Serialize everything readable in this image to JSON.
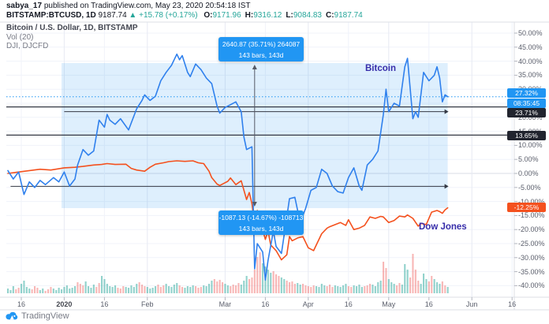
{
  "header": {
    "username": "sabya_17",
    "published": " published on TradingView.com, May 23, 2020 20:54:18 IST",
    "symbol": "BITSTAMP:BTCUSD, 1D",
    "last": "9187.74",
    "change": "▲ +15.78 (+0.17%)",
    "ohlc": [
      {
        "label": "O:",
        "value": "9171.96"
      },
      {
        "label": "H:",
        "value": "9316.12"
      },
      {
        "label": "L:",
        "value": "9084.83"
      },
      {
        "label": "C:",
        "value": "9187.74"
      }
    ]
  },
  "legend": {
    "title": "Bitcoin / U.S. Dollar, 1D, BITSTAMP",
    "vol": "Vol (20)",
    "compare": "DJI, DJCFD"
  },
  "series_labels": {
    "bitcoin": "Bitcoin",
    "dowjones": "Dow Jones"
  },
  "tooltips": {
    "top": {
      "line1": "2640.87 (35.71%) 264087",
      "line2": "143 bars, 143d"
    },
    "bottom": {
      "line1": "-1087.13 (-14.67%) -108713",
      "line2": "143 bars, 143d"
    }
  },
  "axis": {
    "y_labels": [
      "50.00%",
      "45.00%",
      "40.00%",
      "35.00%",
      "30.00%",
      "25.00%",
      "20.00%",
      "15.00%",
      "10.00%",
      "5.00%",
      "0.00%",
      "-5.00%",
      "-10.00%",
      "-15.00%",
      "-20.00%",
      "-25.00%",
      "-30.00%",
      "-35.00%",
      "-40.00%"
    ],
    "x_ticks": [
      {
        "label": "16",
        "day": 5,
        "bold": false
      },
      {
        "label": "2020",
        "day": 21,
        "bold": true
      },
      {
        "label": "16",
        "day": 36,
        "bold": false
      },
      {
        "label": "Feb",
        "day": 52,
        "bold": false
      },
      {
        "label": "Mar",
        "day": 81,
        "bold": false
      },
      {
        "label": "16",
        "day": 96,
        "bold": false
      },
      {
        "label": "Apr",
        "day": 112,
        "bold": false
      },
      {
        "label": "16",
        "day": 127,
        "bold": false
      },
      {
        "label": "May",
        "day": 142,
        "bold": false
      },
      {
        "label": "16",
        "day": 157,
        "bold": false
      },
      {
        "label": "Jun",
        "day": 173,
        "bold": false
      },
      {
        "label": "16",
        "day": 188,
        "bold": false
      }
    ],
    "badges": {
      "btc_current": "27.32%",
      "countdown": "08:35:45",
      "level1": "23.71%",
      "level2": "13.65%",
      "dji_current": "-12.25%"
    }
  },
  "footer": {
    "brand": "TradingView"
  },
  "colors": {
    "btc": "#2f80ed",
    "dji": "#f4511e",
    "shade": "rgba(33,150,243,0.15)",
    "tooltip": "#2196f3",
    "badge_black": "#21242e",
    "badge_red": "#f4511e",
    "purple": "#372daa",
    "vol_up": "rgba(38,166,154,0.50)",
    "vol_down": "rgba(239,83,80,0.42)",
    "grid": "#f0f3fa",
    "grid_month": "#e7eaf3",
    "zero_line": "#dadde6",
    "frame": "#dcdfe6",
    "dark_line": "#343843",
    "arrow_gray": "#555a66",
    "tick": "#b2b5be"
  },
  "chart_data": {
    "type": "line",
    "title": "Bitcoin / U.S. Dollar (BITSTAMP, 1D) vs Dow Jones (DJI, DJCFD) — percent change",
    "x_unit": "days since 2019-12-11",
    "x_range_days": [
      0,
      190
    ],
    "ylim": [
      -40,
      50
    ],
    "y_unit": "percent",
    "grid": true,
    "legend_position": "on-chart-labels",
    "series": [
      {
        "name": "Bitcoin (BTCUSD)",
        "color": "#2f80ed",
        "points": [
          [
            0,
            1
          ],
          [
            2,
            -2
          ],
          [
            4,
            0.5
          ],
          [
            6,
            -7.5
          ],
          [
            8,
            -3
          ],
          [
            10,
            -5
          ],
          [
            12,
            -2.5
          ],
          [
            14,
            -4
          ],
          [
            17,
            -1.5
          ],
          [
            19,
            -3
          ],
          [
            21,
            0.5
          ],
          [
            23,
            -4.5
          ],
          [
            25,
            -2
          ],
          [
            26,
            3
          ],
          [
            28,
            8.5
          ],
          [
            30,
            6.5
          ],
          [
            32,
            8
          ],
          [
            34,
            19
          ],
          [
            36,
            16.5
          ],
          [
            37,
            21
          ],
          [
            38,
            19
          ],
          [
            40,
            17.5
          ],
          [
            42,
            19.5
          ],
          [
            45,
            15.5
          ],
          [
            48,
            23
          ],
          [
            50,
            26
          ],
          [
            51,
            28
          ],
          [
            53,
            26
          ],
          [
            55,
            27.5
          ],
          [
            57,
            33
          ],
          [
            59,
            36
          ],
          [
            61,
            38.5
          ],
          [
            63,
            42.5
          ],
          [
            64,
            40.5
          ],
          [
            65,
            42
          ],
          [
            67,
            36
          ],
          [
            68,
            34.5
          ],
          [
            70,
            39
          ],
          [
            72,
            37
          ],
          [
            74,
            34
          ],
          [
            76,
            32
          ],
          [
            78,
            24
          ],
          [
            79,
            21.5
          ],
          [
            81,
            23.5
          ],
          [
            83,
            24.5
          ],
          [
            85,
            25.5
          ],
          [
            87,
            22
          ],
          [
            88,
            13
          ],
          [
            89,
            8.5
          ],
          [
            91,
            9.5
          ],
          [
            92,
            -34
          ],
          [
            93,
            -25
          ],
          [
            95,
            -28
          ],
          [
            96,
            -38
          ],
          [
            97,
            -31
          ],
          [
            99,
            -20.5
          ],
          [
            100,
            -26
          ],
          [
            102,
            -28.5
          ],
          [
            105,
            -9
          ],
          [
            107,
            -8.5
          ],
          [
            109,
            -17.5
          ],
          [
            111,
            -12.5
          ],
          [
            113,
            -6
          ],
          [
            115,
            -5
          ],
          [
            117,
            1.5
          ],
          [
            119,
            0
          ],
          [
            121,
            -4.5
          ],
          [
            123,
            -6.5
          ],
          [
            125,
            -7
          ],
          [
            127,
            -1.5
          ],
          [
            129,
            2
          ],
          [
            131,
            -4.5
          ],
          [
            132,
            -6
          ],
          [
            134,
            3
          ],
          [
            136,
            5
          ],
          [
            138,
            8
          ],
          [
            140,
            21
          ],
          [
            141,
            30
          ],
          [
            142,
            22
          ],
          [
            144,
            25
          ],
          [
            146,
            24
          ],
          [
            148,
            38
          ],
          [
            149,
            41
          ],
          [
            151,
            19.5
          ],
          [
            152,
            22
          ],
          [
            153,
            20
          ],
          [
            155,
            36
          ],
          [
            157,
            33
          ],
          [
            159,
            35
          ],
          [
            160,
            38
          ],
          [
            161,
            34
          ],
          [
            162,
            25.5
          ],
          [
            163,
            28
          ],
          [
            164,
            27.32
          ]
        ]
      },
      {
        "name": "Dow Jones (DJI)",
        "color": "#f4511e",
        "points": [
          [
            0,
            0
          ],
          [
            4,
            0.5
          ],
          [
            8,
            1
          ],
          [
            12,
            1.5
          ],
          [
            16,
            1.2
          ],
          [
            21,
            2
          ],
          [
            25,
            2.2
          ],
          [
            28,
            2.5
          ],
          [
            32,
            3
          ],
          [
            35,
            3.2
          ],
          [
            37,
            3.5
          ],
          [
            40,
            3.2
          ],
          [
            44,
            3.3
          ],
          [
            46,
            1.8
          ],
          [
            48,
            1.2
          ],
          [
            51,
            0.8
          ],
          [
            53,
            2.2
          ],
          [
            55,
            3.3
          ],
          [
            58,
            3.8
          ],
          [
            60,
            4.2
          ],
          [
            63,
            4.5
          ],
          [
            66,
            4.3
          ],
          [
            69,
            4.5
          ],
          [
            71,
            3.8
          ],
          [
            73,
            3.5
          ],
          [
            75,
            0.8
          ],
          [
            76,
            -1.5
          ],
          [
            78,
            -3.8
          ],
          [
            79,
            -4.3
          ],
          [
            82,
            -2.8
          ],
          [
            83,
            -1.6
          ],
          [
            85,
            -4
          ],
          [
            87,
            -2.6
          ],
          [
            89,
            -9.3
          ],
          [
            90,
            -6.8
          ],
          [
            91,
            -10.8
          ],
          [
            92,
            -18.5
          ],
          [
            93,
            -13.2
          ],
          [
            96,
            -23.5
          ],
          [
            97,
            -20.5
          ],
          [
            98,
            -25.5
          ],
          [
            100,
            -27.5
          ],
          [
            102,
            -30.8
          ],
          [
            104,
            -29
          ],
          [
            105,
            -22.5
          ],
          [
            106,
            -24
          ],
          [
            108,
            -23
          ],
          [
            110,
            -22.5
          ],
          [
            112,
            -26.5
          ],
          [
            114,
            -27.5
          ],
          [
            117,
            -21.5
          ],
          [
            119,
            -19.5
          ],
          [
            120,
            -19
          ],
          [
            124,
            -17.5
          ],
          [
            126,
            -18.5
          ],
          [
            127,
            -16.5
          ],
          [
            129,
            -20
          ],
          [
            131,
            -19.5
          ],
          [
            133,
            -18.5
          ],
          [
            135,
            -15.5
          ],
          [
            137,
            -16
          ],
          [
            139,
            -15.3
          ],
          [
            140,
            -15.5
          ],
          [
            142,
            -17.5
          ],
          [
            144,
            -16.8
          ],
          [
            146,
            -15.2
          ],
          [
            148,
            -15.5
          ],
          [
            149,
            -14.8
          ],
          [
            151,
            -16
          ],
          [
            153,
            -18.8
          ],
          [
            154,
            -17.8
          ],
          [
            156,
            -18.2
          ],
          [
            158,
            -13.8
          ],
          [
            160,
            -13.2
          ],
          [
            161,
            -13.6
          ],
          [
            162,
            -14.2
          ],
          [
            163,
            -13
          ],
          [
            164,
            -12.25
          ]
        ]
      }
    ],
    "current_values": {
      "bitcoin_pct": 27.32,
      "dowjones_pct": -12.25
    },
    "levels": [
      {
        "type": "hline",
        "value_pct": 23.71,
        "label": "23.71%"
      },
      {
        "type": "hline",
        "value_pct": 13.65,
        "label": "13.65%"
      },
      {
        "type": "arrow",
        "value_pct": 22.0,
        "from_day": 21,
        "to_day": 164
      },
      {
        "type": "arrow",
        "value_pct": -4.6,
        "from_day": 1,
        "to_day": 164
      }
    ],
    "range_tool": {
      "bars": 143,
      "days": 143,
      "anchor_day": 92,
      "shade_from_day": 20,
      "shade_to_day": 164,
      "up_measure": "2640.87 (35.71%) 264087",
      "down_measure": "-1087.13 (-14.67%) -108713"
    },
    "volume": {
      "label": "Vol (20)",
      "heights": [
        6,
        4,
        9,
        5,
        7,
        12,
        16,
        8,
        6,
        5,
        9,
        7,
        4,
        6,
        3,
        5,
        8,
        6,
        4,
        7,
        5,
        8,
        10,
        6,
        7,
        9,
        14,
        12,
        10,
        15,
        9,
        7,
        11,
        8,
        13,
        22,
        18,
        12,
        9,
        8,
        10,
        7,
        6,
        9,
        8,
        7,
        10,
        8,
        12,
        14,
        11,
        9,
        8,
        6,
        7,
        9,
        11,
        8,
        10,
        12,
        9,
        8,
        11,
        13,
        10,
        8,
        7,
        9,
        8,
        10,
        9,
        7,
        8,
        10,
        9,
        12,
        16,
        18,
        15,
        17,
        14,
        12,
        10,
        9,
        11,
        10,
        13,
        11,
        16,
        22,
        18,
        20,
        30,
        46,
        52,
        38,
        34,
        30,
        26,
        28,
        24,
        22,
        20,
        18,
        16,
        14,
        15,
        12,
        13,
        11,
        12,
        10,
        9,
        8,
        10,
        9,
        8,
        12,
        10,
        9,
        11,
        8,
        10,
        9,
        8,
        10,
        12,
        9,
        8,
        10,
        9,
        11,
        8,
        9,
        10,
        12,
        11,
        9,
        14,
        16,
        40,
        32,
        18,
        14,
        12,
        10,
        13,
        11,
        37,
        30,
        20,
        50,
        30,
        16,
        12,
        25,
        18,
        15,
        22,
        18,
        14,
        12,
        15,
        10,
        8
      ],
      "color_runs": [
        [
          3,
          "u"
        ],
        [
          2,
          "d"
        ],
        [
          4,
          "u"
        ],
        [
          3,
          "d"
        ],
        [
          2,
          "u"
        ],
        [
          3,
          "d"
        ],
        [
          4,
          "u"
        ],
        [
          5,
          "u"
        ],
        [
          3,
          "d"
        ],
        [
          4,
          "u"
        ],
        [
          2,
          "d"
        ],
        [
          6,
          "u"
        ],
        [
          3,
          "d"
        ],
        [
          5,
          "u"
        ],
        [
          3,
          "d"
        ],
        [
          4,
          "u"
        ],
        [
          3,
          "d"
        ],
        [
          5,
          "u"
        ],
        [
          2,
          "d"
        ],
        [
          4,
          "u"
        ],
        [
          3,
          "d"
        ],
        [
          4,
          "u"
        ],
        [
          4,
          "d"
        ],
        [
          2,
          "u"
        ],
        [
          4,
          "d"
        ],
        [
          3,
          "u"
        ],
        [
          5,
          "d"
        ],
        [
          4,
          "u"
        ],
        [
          3,
          "d"
        ],
        [
          2,
          "u"
        ],
        [
          4,
          "d"
        ],
        [
          2,
          "u"
        ],
        [
          2,
          "d"
        ],
        [
          3,
          "d"
        ],
        [
          4,
          "u"
        ],
        [
          3,
          "d"
        ],
        [
          5,
          "u"
        ],
        [
          2,
          "d"
        ],
        [
          4,
          "u"
        ],
        [
          3,
          "d"
        ],
        [
          4,
          "u"
        ],
        [
          2,
          "d"
        ],
        [
          3,
          "u"
        ],
        [
          2,
          "d"
        ],
        [
          3,
          "u"
        ],
        [
          4,
          "d"
        ],
        [
          3,
          "u"
        ],
        [
          2,
          "d"
        ],
        [
          3,
          "u"
        ],
        [
          2,
          "d"
        ],
        [
          1,
          "u"
        ]
      ]
    }
  }
}
